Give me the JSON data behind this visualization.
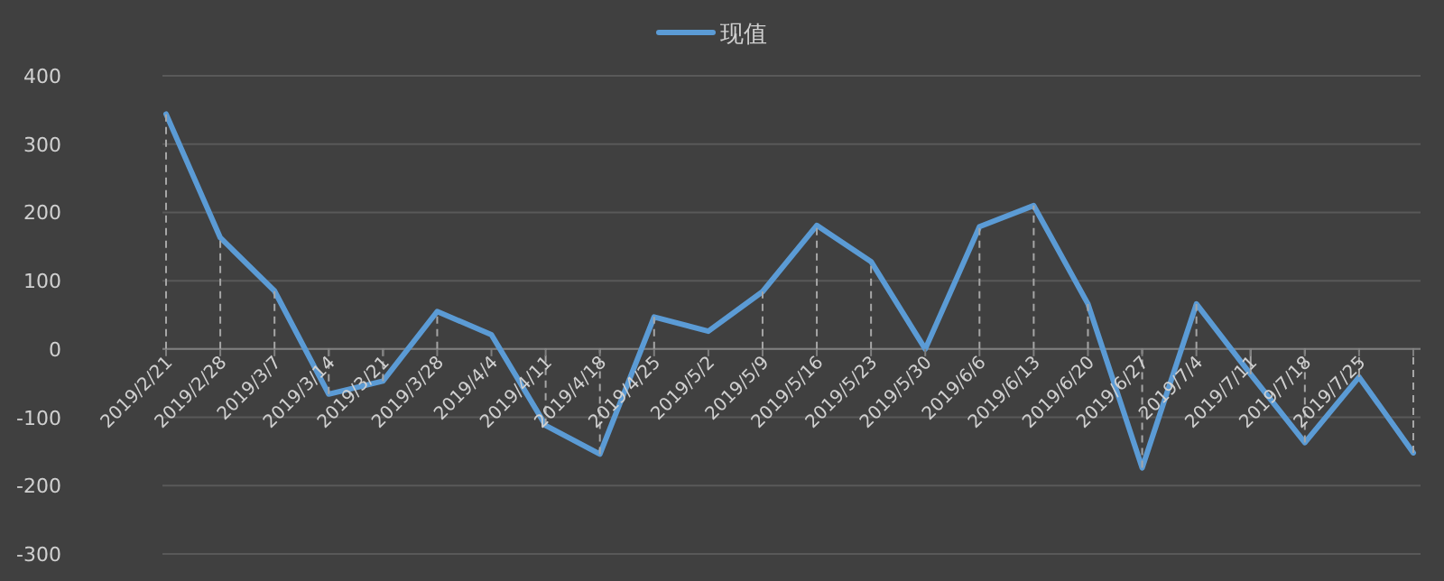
{
  "chart_data": {
    "type": "line",
    "categories": [
      "2019/2/21",
      "2019/2/28",
      "2019/3/7",
      "2019/3/14",
      "2019/3/21",
      "2019/3/28",
      "2019/4/4",
      "2019/4/11",
      "2019/4/18",
      "2019/4/25",
      "2019/5/2",
      "2019/5/9",
      "2019/5/16",
      "2019/5/23",
      "2019/5/30",
      "2019/6/6",
      "2019/6/13",
      "2019/6/20",
      "2019/6/27",
      "2019/7/4",
      "2019/7/11",
      "2019/7/18",
      "2019/7/25",
      null
    ],
    "series": [
      {
        "name": "现值",
        "color": "#5b9bd5",
        "values": [
          344,
          163,
          85,
          -66,
          -47,
          55,
          21,
          -112,
          -154,
          47,
          26,
          84,
          181,
          128,
          0,
          179,
          210,
          66,
          -174,
          66,
          -37,
          -137,
          -41,
          -152
        ],
        "errors": [
          [
            0,
            344
          ],
          [
            0,
            163
          ],
          [
            0,
            85
          ],
          [
            -66,
            0
          ],
          [
            -47,
            0
          ],
          [
            0,
            55
          ],
          null,
          [
            -112,
            0
          ],
          [
            -154,
            0
          ],
          [
            0,
            47
          ],
          null,
          [
            0,
            84
          ],
          [
            0,
            181
          ],
          [
            0,
            128
          ],
          null,
          [
            0,
            179
          ],
          [
            0,
            210
          ],
          [
            0,
            66
          ],
          [
            -174,
            0
          ],
          [
            0,
            66
          ],
          [
            -37,
            0
          ],
          [
            -137,
            0
          ],
          [
            -41,
            0
          ],
          [
            -152,
            0
          ]
        ]
      }
    ],
    "ylim": [
      -300,
      400
    ],
    "yticks": [
      -300,
      -200,
      -100,
      0,
      100,
      200,
      300,
      400
    ],
    "grid": "y",
    "legend": "top",
    "marker": "none",
    "line_style": "solid"
  }
}
